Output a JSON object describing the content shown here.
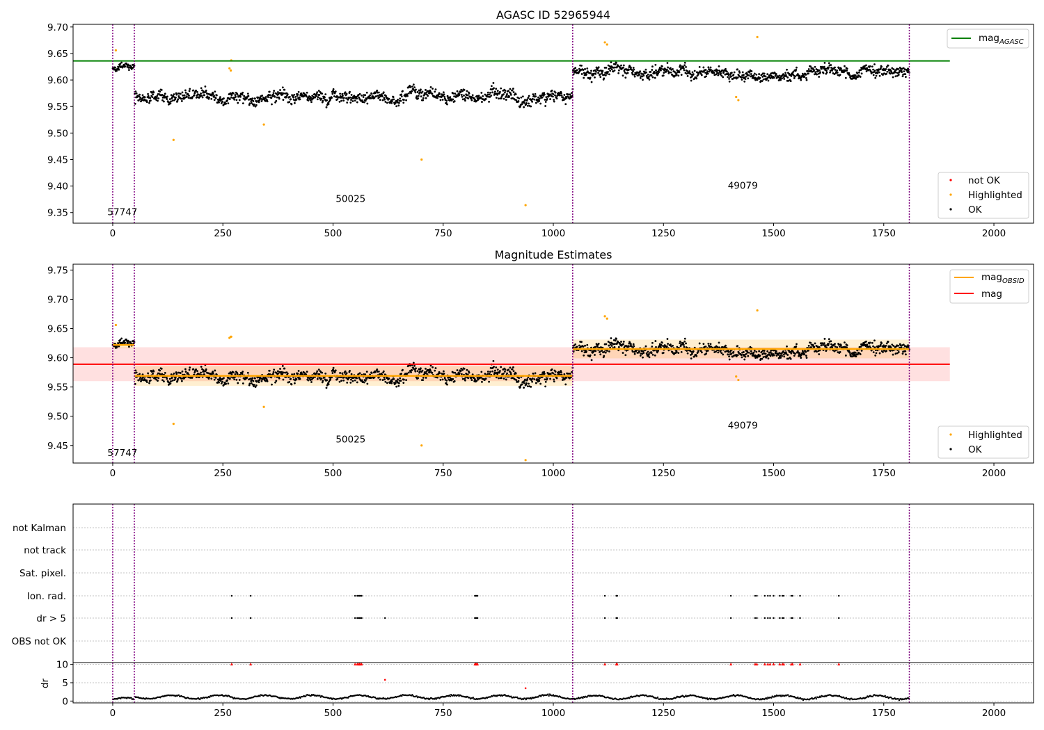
{
  "colors": {
    "ok": "#000000",
    "highlighted": "#ffa500",
    "not_ok": "#ff0000",
    "mag_agasc": "#008000",
    "mag_obsid": "#ffa500",
    "mag": "#ff0000",
    "obs_boundary": "#800080",
    "gridline": "#b0b0b0"
  },
  "panels": {
    "top": {
      "title": "AGASC ID 52965944",
      "legend_line": {
        "label": "mag",
        "subscript": "AGASC"
      },
      "legend_points": [
        {
          "label": "not OK"
        },
        {
          "label": "Highlighted"
        },
        {
          "label": "OK"
        }
      ]
    },
    "middle": {
      "title": "Magnitude Estimates",
      "legend_lines": [
        {
          "label": "mag",
          "subscript": "OBSID"
        },
        {
          "label": "mag",
          "subscript": ""
        }
      ],
      "legend_points": [
        {
          "label": "Highlighted"
        },
        {
          "label": "OK"
        }
      ]
    },
    "bottom": {
      "flag_labels": [
        "not Kalman",
        "not track",
        "Sat. pixel.",
        "Ion. rad.",
        "dr > 5",
        "OBS not OK"
      ],
      "dr_ylabel": "dr"
    }
  },
  "chart_data": [
    {
      "type": "scatter",
      "title": "AGASC ID 52965944",
      "xlim": [
        -90,
        2090
      ],
      "ylim": [
        9.33,
        9.705
      ],
      "xticks": [
        0,
        250,
        500,
        750,
        1000,
        1250,
        1500,
        1750,
        2000
      ],
      "yticks": [
        9.35,
        9.4,
        9.45,
        9.5,
        9.55,
        9.6,
        9.65,
        9.7
      ],
      "ytick_labels": [
        "9.35",
        "9.40",
        "9.45",
        "9.50",
        "9.55",
        "9.60",
        "9.65",
        "9.70"
      ],
      "mag_agasc": 9.636,
      "mag_agasc_xrange": [
        -90,
        1900
      ],
      "obs_boundaries": [
        0,
        49,
        1044,
        1808
      ],
      "obsid_labels": [
        {
          "text": "57747",
          "x": 22,
          "y": 9.345
        },
        {
          "text": "50025",
          "x": 540,
          "y": 9.37
        },
        {
          "text": "49079",
          "x": 1430,
          "y": 9.395
        }
      ],
      "segments": [
        {
          "start": 0,
          "end": 49,
          "mean": 9.622,
          "sd": 0.009
        },
        {
          "start": 50,
          "end": 1044,
          "mean": 9.568,
          "sd": 0.016
        },
        {
          "start": 1045,
          "end": 1808,
          "mean": 9.615,
          "sd": 0.015
        }
      ],
      "highlighted": [
        [
          7,
          9.656
        ],
        [
          138,
          9.487
        ],
        [
          265,
          9.622
        ],
        [
          268,
          9.618
        ],
        [
          269,
          9.637
        ],
        [
          343,
          9.516
        ],
        [
          701,
          9.45
        ],
        [
          937,
          9.364
        ],
        [
          1117,
          9.671
        ],
        [
          1122,
          9.667
        ],
        [
          1463,
          9.681
        ],
        [
          1415,
          9.568
        ],
        [
          1420,
          9.562
        ]
      ],
      "not_ok": [],
      "legend": "top-right / lower-right"
    },
    {
      "type": "scatter",
      "title": "Magnitude Estimates",
      "xlim": [
        -90,
        2090
      ],
      "ylim": [
        9.42,
        9.76
      ],
      "xticks": [
        0,
        250,
        500,
        750,
        1000,
        1250,
        1500,
        1750,
        2000
      ],
      "yticks": [
        9.45,
        9.5,
        9.55,
        9.6,
        9.65,
        9.7,
        9.75
      ],
      "ytick_labels": [
        "9.45",
        "9.50",
        "9.55",
        "9.60",
        "9.65",
        "9.70",
        "9.75"
      ],
      "mag": 9.589,
      "mag_band": [
        9.56,
        9.618
      ],
      "mag_xrange": [
        -90,
        1900
      ],
      "mag_obsid": [
        {
          "x0": 0,
          "x1": 49,
          "value": 9.622,
          "band": [
            9.616,
            9.628
          ]
        },
        {
          "x0": 49,
          "x1": 1044,
          "value": 9.569,
          "band": [
            9.552,
            9.586
          ]
        },
        {
          "x0": 1044,
          "x1": 1808,
          "value": 9.615,
          "band": [
            9.599,
            9.631
          ]
        }
      ],
      "obs_boundaries": [
        0,
        49,
        1044,
        1808
      ],
      "obsid_labels": [
        {
          "text": "57747",
          "x": 22,
          "y": 9.432
        },
        {
          "text": "50025",
          "x": 540,
          "y": 9.455
        },
        {
          "text": "49079",
          "x": 1430,
          "y": 9.479
        }
      ],
      "highlighted": [
        [
          7,
          9.656
        ],
        [
          138,
          9.487
        ],
        [
          265,
          9.634
        ],
        [
          268,
          9.636
        ],
        [
          269,
          9.636
        ],
        [
          343,
          9.516
        ],
        [
          701,
          9.45
        ],
        [
          937,
          9.425
        ],
        [
          1117,
          9.671
        ],
        [
          1122,
          9.667
        ],
        [
          1463,
          9.681
        ],
        [
          1415,
          9.568
        ],
        [
          1420,
          9.562
        ]
      ],
      "legend": "top-right / lower-right"
    },
    {
      "type": "scatter",
      "title": "",
      "xlim": [
        -90,
        2090
      ],
      "xticks": [
        0,
        250,
        500,
        750,
        1000,
        1250,
        1500,
        1750,
        2000
      ],
      "flag_rows": [
        "not Kalman",
        "not track",
        "Sat. pixel.",
        "Ion. rad.",
        "dr > 5",
        "OBS not OK"
      ],
      "flag_events": {
        "Ion. rad.": [
          270,
          313,
          550,
          555,
          558,
          560,
          562,
          565,
          822,
          824,
          826,
          828,
          1117,
          1143,
          1145,
          1403,
          1458,
          1462,
          1480,
          1487,
          1492,
          1500,
          1514,
          1520,
          1523,
          1540,
          1543,
          1560,
          1648
        ],
        "dr > 5": [
          270,
          313,
          550,
          555,
          558,
          560,
          562,
          565,
          618,
          822,
          824,
          826,
          828,
          1117,
          1143,
          1145,
          1403,
          1458,
          1462,
          1480,
          1487,
          1492,
          1500,
          1514,
          1520,
          1523,
          1540,
          1543,
          1560,
          1648
        ]
      },
      "dr_ylim": [
        -0.5,
        10.5
      ],
      "dr_yticks": [
        0,
        5,
        10
      ],
      "dr_ytick_labels": [
        "0",
        "5",
        "10"
      ],
      "dr_clipped_at_10": [
        270,
        313,
        550,
        555,
        558,
        560,
        562,
        565,
        822,
        824,
        826,
        828,
        1117,
        1143,
        1145,
        1403,
        1458,
        1462,
        1480,
        1487,
        1492,
        1500,
        1514,
        1520,
        1523,
        1540,
        1543,
        1560,
        1648
      ],
      "dr_outliers": [
        [
          618,
          5.8
        ],
        [
          937,
          3.5
        ]
      ],
      "dr_segments": [
        {
          "start": 0,
          "end": 49,
          "mean": 0.4
        },
        {
          "start": 50,
          "end": 1044,
          "mean": 1.1
        },
        {
          "start": 1045,
          "end": 1808,
          "mean": 1.0
        }
      ],
      "obs_boundaries": [
        0,
        49,
        1044,
        1808
      ]
    }
  ]
}
